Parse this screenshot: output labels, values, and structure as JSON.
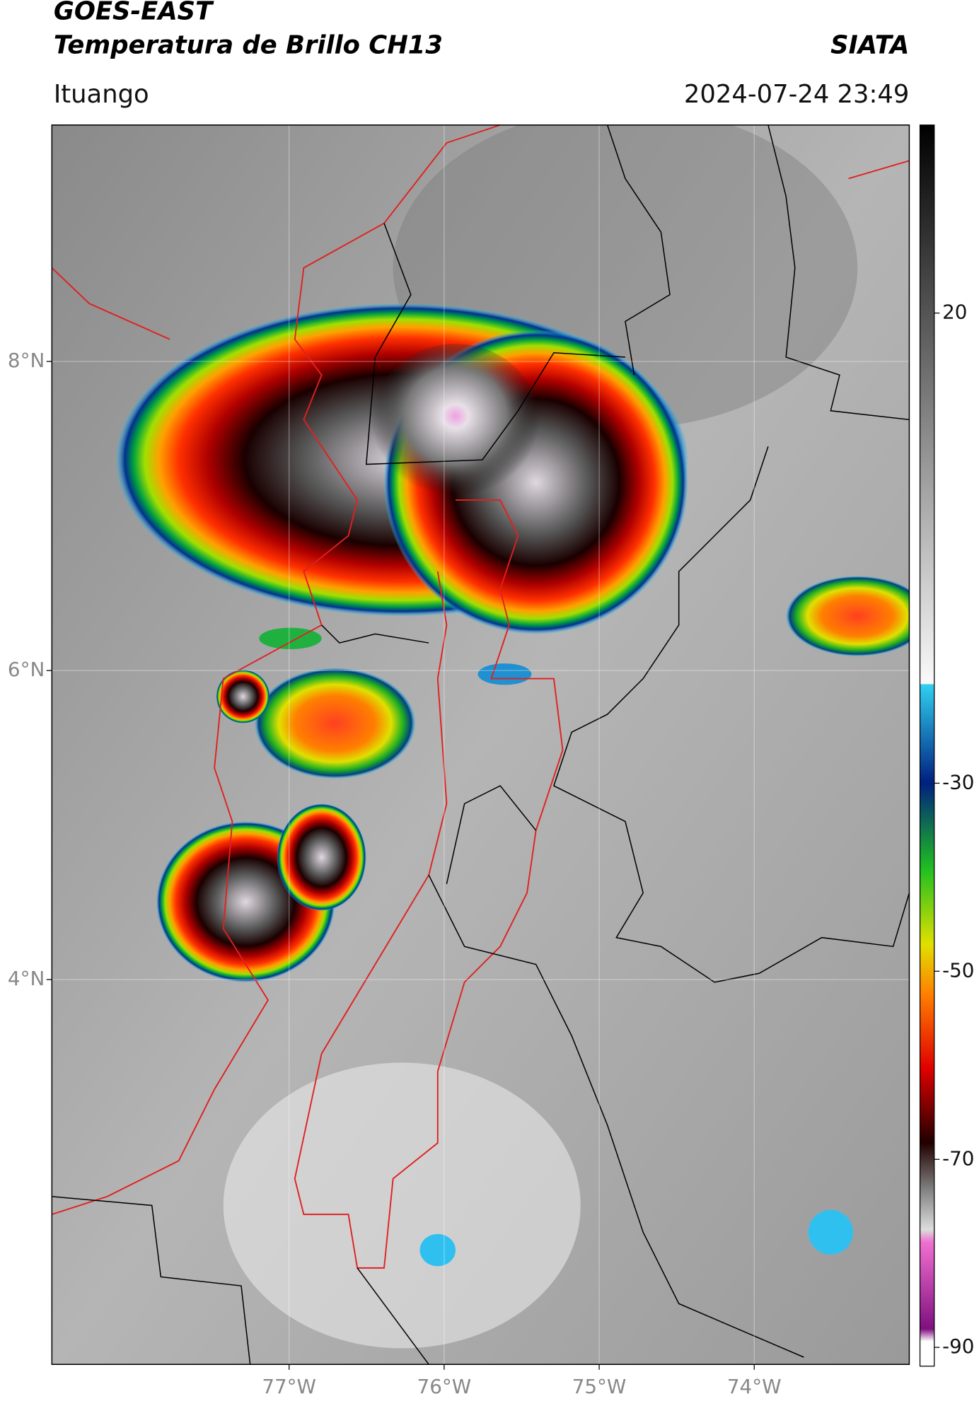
{
  "map": {
    "title": "GOES-EAST",
    "subtitle": "Temperatura de Brillo CH13",
    "source": "SIATA",
    "region": "Ituango",
    "timestamp": "2024-07-24 23:49",
    "xlim": [
      -78.53,
      -73.0
    ],
    "ylim": [
      1.51,
      9.53
    ],
    "xticks": [
      {
        "value": -77,
        "label": "77°W"
      },
      {
        "value": -76,
        "label": "76°W"
      },
      {
        "value": -75,
        "label": "75°W"
      },
      {
        "value": -74,
        "label": "74°W"
      }
    ],
    "yticks": [
      {
        "value": 8,
        "label": "8°N"
      },
      {
        "value": 6,
        "label": "6°N"
      },
      {
        "value": 4,
        "label": "4°N"
      }
    ],
    "grid": true,
    "colorbar": {
      "lim": [
        -92,
        40
      ],
      "ticks": [
        20,
        -30,
        -50,
        -70,
        -90
      ]
    }
  }
}
